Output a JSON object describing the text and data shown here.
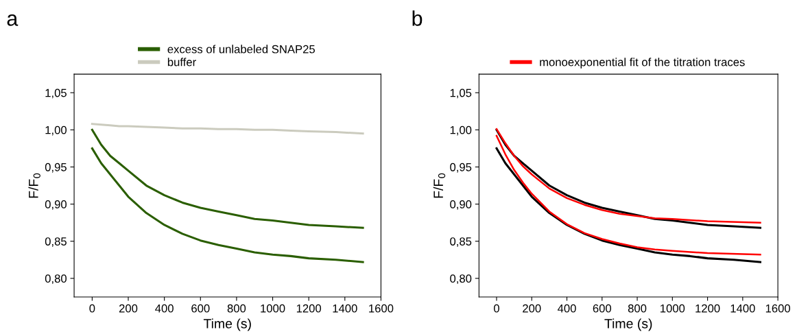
{
  "chart_data": [
    {
      "type": "line",
      "title": "a",
      "xlabel": "Time (s)",
      "ylabel": "F/F$_{0}$",
      "xlim": [
        -100,
        1600
      ],
      "ylim": [
        0.775,
        1.075
      ],
      "xticks": [
        0,
        200,
        400,
        600,
        800,
        1000,
        1200,
        1400,
        1600
      ],
      "yticks": [
        {
          "value": 0.8,
          "label": "0,80"
        },
        {
          "value": 0.85,
          "label": "0,85"
        },
        {
          "value": 0.9,
          "label": "0,90"
        },
        {
          "value": 0.95,
          "label": "0,95"
        },
        {
          "value": 1.0,
          "label": "1,00"
        },
        {
          "value": 1.05,
          "label": "1,05"
        }
      ],
      "grid": false,
      "legend": "top",
      "marker": "none",
      "line_style": "solid",
      "x": [
        0,
        50,
        100,
        150,
        200,
        300,
        400,
        500,
        600,
        700,
        800,
        900,
        1000,
        1100,
        1200,
        1350,
        1500
      ],
      "series": [
        {
          "name": "excess of unlabeled SNAP25",
          "color": "#2a5e00",
          "values": [
            1.0,
            0.98,
            0.965,
            0.955,
            0.945,
            0.925,
            0.912,
            0.902,
            0.895,
            0.89,
            0.885,
            0.88,
            0.878,
            0.875,
            0.872,
            0.87,
            0.868
          ]
        },
        {
          "color": "#2a5e00",
          "values": [
            0.975,
            0.955,
            0.94,
            0.925,
            0.91,
            0.888,
            0.872,
            0.86,
            0.851,
            0.845,
            0.84,
            0.835,
            0.832,
            0.83,
            0.827,
            0.825,
            0.822
          ]
        },
        {
          "name": "buffer",
          "color": "#cbcbbe",
          "values": [
            1.008,
            1.007,
            1.006,
            1.005,
            1.005,
            1.004,
            1.003,
            1.002,
            1.002,
            1.001,
            1.001,
            1.0,
            1.0,
            0.999,
            0.998,
            0.997,
            0.995
          ]
        }
      ]
    },
    {
      "type": "line",
      "title": "b",
      "xlabel": "Time (s)",
      "ylabel": "F/F$_{0}$",
      "xlim": [
        -100,
        1600
      ],
      "ylim": [
        0.775,
        1.075
      ],
      "xticks": [
        0,
        200,
        400,
        600,
        800,
        1000,
        1200,
        1400,
        1600
      ],
      "yticks": [
        {
          "value": 0.8,
          "label": "0,80"
        },
        {
          "value": 0.85,
          "label": "0,85"
        },
        {
          "value": 0.9,
          "label": "0,90"
        },
        {
          "value": 0.95,
          "label": "0,95"
        },
        {
          "value": 1.0,
          "label": "1,00"
        },
        {
          "value": 1.05,
          "label": "1,05"
        }
      ],
      "grid": false,
      "legend": "top",
      "marker": "none",
      "line_style": "solid",
      "x": [
        0,
        50,
        100,
        150,
        200,
        300,
        400,
        500,
        600,
        700,
        800,
        900,
        1000,
        1100,
        1200,
        1350,
        1500
      ],
      "series": [
        {
          "color": "#000000",
          "values": [
            1.0,
            0.98,
            0.965,
            0.955,
            0.945,
            0.925,
            0.912,
            0.902,
            0.895,
            0.89,
            0.885,
            0.88,
            0.878,
            0.875,
            0.872,
            0.87,
            0.868
          ]
        },
        {
          "color": "#000000",
          "values": [
            0.975,
            0.955,
            0.94,
            0.925,
            0.91,
            0.888,
            0.872,
            0.86,
            0.851,
            0.845,
            0.84,
            0.835,
            0.832,
            0.83,
            0.827,
            0.825,
            0.822
          ]
        },
        {
          "name": "monoexponential fit of the titration traces",
          "color": "#ff0000",
          "x": [
            0,
            50,
            100,
            150,
            200,
            300,
            400,
            500,
            600,
            700,
            800,
            900,
            1000,
            1200,
            1500
          ],
          "values": [
            1.001,
            0.982,
            0.965,
            0.951,
            0.94,
            0.921,
            0.908,
            0.899,
            0.892,
            0.887,
            0.884,
            0.881,
            0.88,
            0.877,
            0.875
          ]
        },
        {
          "color": "#ff0000",
          "x": [
            0,
            50,
            100,
            150,
            200,
            300,
            400,
            500,
            600,
            700,
            800,
            900,
            1000,
            1200,
            1500
          ],
          "values": [
            0.992,
            0.967,
            0.946,
            0.929,
            0.914,
            0.89,
            0.873,
            0.861,
            0.853,
            0.847,
            0.842,
            0.839,
            0.837,
            0.834,
            0.832
          ]
        }
      ]
    }
  ]
}
